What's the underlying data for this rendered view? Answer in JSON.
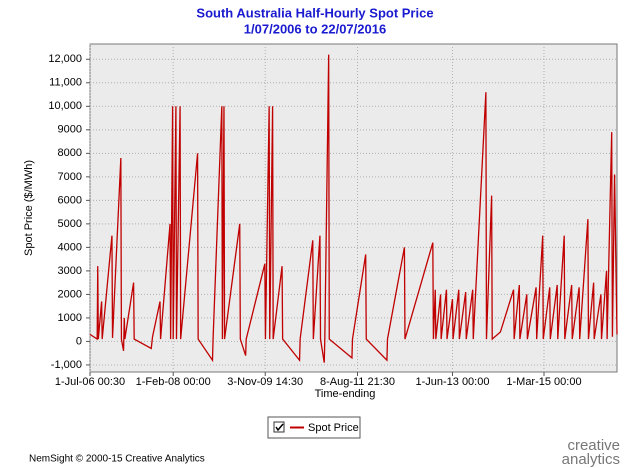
{
  "chart_data": {
    "type": "line",
    "title": "South Australia Half-Hourly Spot Price",
    "subtitle": "1/07/2006 to 22/07/2016",
    "x_label": "Time-ending",
    "y_label": "Spot Price ($/MWh)",
    "x": [
      "2006-07-01",
      "2006-08-20",
      "2006-08-24",
      "2006-08-28",
      "2006-09-20",
      "2006-09-24",
      "2006-12-01",
      "2006-12-05",
      "2007-02-01",
      "2007-02-05",
      "2007-02-20",
      "2007-02-25",
      "2007-03-01",
      "2007-05-01",
      "2007-05-05",
      "2007-09-01",
      "2007-09-10",
      "2007-11-01",
      "2007-11-05",
      "2008-01-10",
      "2008-01-14",
      "2008-01-28",
      "2008-02-01",
      "2008-02-20",
      "2008-02-24",
      "2008-03-20",
      "2008-03-24",
      "2008-07-20",
      "2008-07-24",
      "2008-11-01",
      "2008-11-05",
      "2009-01-05",
      "2009-01-09",
      "2009-01-20",
      "2009-01-24",
      "2009-05-10",
      "2009-05-14",
      "2009-06-20",
      "2009-06-24",
      "2009-11-01",
      "2009-11-05",
      "2009-12-01",
      "2009-12-05",
      "2009-12-25",
      "2009-12-29",
      "2010-03-01",
      "2010-03-05",
      "2010-07-01",
      "2010-07-05",
      "2010-10-01",
      "2010-10-05",
      "2010-11-20",
      "2010-11-24",
      "2010-12-20",
      "2010-12-24",
      "2011-01-20",
      "2011-01-24",
      "2011-07-01",
      "2011-07-05",
      "2011-10-05",
      "2011-10-09",
      "2012-03-01",
      "2012-03-05",
      "2012-07-01",
      "2012-07-05",
      "2013-01-15",
      "2013-01-19",
      "2013-02-01",
      "2013-02-05",
      "2013-03-10",
      "2013-03-14",
      "2013-04-20",
      "2013-04-24",
      "2013-06-01",
      "2013-06-05",
      "2013-07-15",
      "2013-07-19",
      "2013-09-01",
      "2013-09-05",
      "2013-10-20",
      "2013-10-24",
      "2014-01-20",
      "2014-01-24",
      "2014-03-01",
      "2014-03-05",
      "2014-05-01",
      "2014-08-01",
      "2014-08-05",
      "2014-09-10",
      "2014-09-14",
      "2014-11-01",
      "2014-11-05",
      "2015-01-05",
      "2015-01-09",
      "2015-02-20",
      "2015-02-24",
      "2015-04-10",
      "2015-04-14",
      "2015-06-01",
      "2015-06-05",
      "2015-07-20",
      "2015-07-24",
      "2015-09-10",
      "2015-09-14",
      "2015-11-01",
      "2015-11-05",
      "2016-01-01",
      "2016-01-05",
      "2016-02-10",
      "2016-02-14",
      "2016-04-01",
      "2016-04-05",
      "2016-05-10",
      "2016-05-14",
      "2016-06-15",
      "2016-06-20",
      "2016-07-05",
      "2016-07-22"
    ],
    "series": [
      {
        "name": "Spot Price",
        "color": "#c00000",
        "values": [
          300,
          100,
          3200,
          100,
          1700,
          100,
          4500,
          150,
          7800,
          100,
          -400,
          1000,
          100,
          2500,
          100,
          -300,
          200,
          1700,
          100,
          5000,
          100,
          10000,
          100,
          10000,
          100,
          10000,
          100,
          8000,
          100,
          -800,
          100,
          10000,
          100,
          10000,
          100,
          5000,
          100,
          -600,
          100,
          3300,
          100,
          10000,
          100,
          10000,
          100,
          3200,
          100,
          -800,
          100,
          4300,
          100,
          4500,
          100,
          -900,
          100,
          12200,
          100,
          -700,
          100,
          3700,
          100,
          -800,
          100,
          4000,
          100,
          4200,
          100,
          2200,
          100,
          2000,
          100,
          2200,
          100,
          1800,
          100,
          2200,
          100,
          2100,
          100,
          2200,
          100,
          10600,
          100,
          6200,
          100,
          400,
          2200,
          100,
          2400,
          100,
          2000,
          100,
          2300,
          100,
          4500,
          100,
          2300,
          100,
          2400,
          100,
          4500,
          100,
          2400,
          100,
          2300,
          100,
          5200,
          100,
          2500,
          100,
          2000,
          100,
          3000,
          100,
          8900,
          200,
          7100,
          300
        ]
      }
    ],
    "xlim": [
      "2006-07-01T00:30",
      "2016-07-22T00:00"
    ],
    "xticks": [
      {
        "value": "2006-07-01T00:30",
        "label": "1-Jul-06 00:30"
      },
      {
        "value": "2008-02-01T00:00",
        "label": "1-Feb-08 00:00"
      },
      {
        "value": "2009-11-03T14:30",
        "label": "3-Nov-09 14:30"
      },
      {
        "value": "2011-08-08T21:30",
        "label": "8-Aug-11 21:30"
      },
      {
        "value": "2013-06-01T00:00",
        "label": "1-Jun-13 00:00"
      },
      {
        "value": "2015-03-01T00:00",
        "label": "1-Mar-15 00:00"
      }
    ],
    "ylim": [
      -1300,
      12650
    ],
    "yticks": [
      {
        "value": -1000,
        "label": "-1,000"
      },
      0,
      1000,
      2000,
      3000,
      4000,
      5000,
      6000,
      7000,
      8000,
      9000,
      {
        "value": 10000,
        "label": "10,000"
      },
      {
        "value": 11000,
        "label": "11,000"
      },
      {
        "value": 12000,
        "label": "12,000"
      }
    ],
    "grid": true,
    "legend": "bottom"
  },
  "footer": "NemSight © 2000-15 Creative Analytics",
  "logo": [
    "creative",
    "analytics"
  ]
}
